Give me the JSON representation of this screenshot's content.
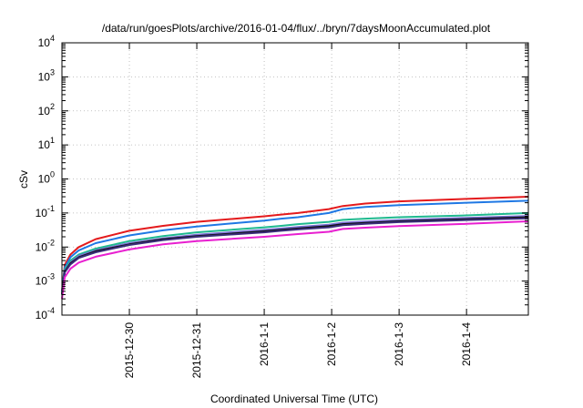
{
  "chart_data": {
    "type": "line",
    "title": "/data/run/goesPlots/archive/2016-01-04/flux/../bryn/7daysMoonAccumulated.plot",
    "xlabel": "Coordinated Universal Time (UTC)",
    "ylabel": "cSv",
    "yscale": "log",
    "ylim_exp": [
      -4,
      4
    ],
    "y_ticks": [
      {
        "base": "10",
        "exp": "-4",
        "value_exp": -4
      },
      {
        "base": "10",
        "exp": "-3",
        "value_exp": -3
      },
      {
        "base": "10",
        "exp": "-2",
        "value_exp": -2
      },
      {
        "base": "10",
        "exp": "-1",
        "value_exp": -1
      },
      {
        "base": "10",
        "exp": "0",
        "value_exp": 0
      },
      {
        "base": "10",
        "exp": "1",
        "value_exp": 1
      },
      {
        "base": "10",
        "exp": "2",
        "value_exp": 2
      },
      {
        "base": "10",
        "exp": "3",
        "value_exp": 3
      },
      {
        "base": "10",
        "exp": "4",
        "value_exp": 4
      }
    ],
    "xlim": [
      "2015-12-29T00:00",
      "2016-01-04T22:00"
    ],
    "x_ticks": [
      {
        "label": "2015-12-30",
        "date": "2015-12-30T00:00"
      },
      {
        "label": "2015-12-31",
        "date": "2015-12-31T00:00"
      },
      {
        "label": "2016-1-1",
        "date": "2016-01-01T00:00"
      },
      {
        "label": "2016-1-2",
        "date": "2016-01-02T00:00"
      },
      {
        "label": "2016-1-3",
        "date": "2016-01-03T00:00"
      },
      {
        "label": "2016-1-4",
        "date": "2016-01-04T00:00"
      }
    ],
    "grid": true,
    "x": [
      "2015-12-29T00:00",
      "2015-12-29T01:00",
      "2015-12-29T03:00",
      "2015-12-29T06:00",
      "2015-12-29T12:00",
      "2015-12-30T00:00",
      "2015-12-30T12:00",
      "2015-12-31T00:00",
      "2016-01-01T00:00",
      "2016-01-01T06:00",
      "2016-01-01T12:00",
      "2016-01-01T23:00",
      "2016-01-02T04:00",
      "2016-01-02T12:00",
      "2016-01-03T00:00",
      "2016-01-04T00:00",
      "2016-01-04T22:00"
    ],
    "series": [
      {
        "color": "#e41a1c",
        "width": 2,
        "values": [
          0.0005,
          0.003,
          0.006,
          0.01,
          0.017,
          0.03,
          0.042,
          0.055,
          0.08,
          0.09,
          0.1,
          0.13,
          0.16,
          0.19,
          0.22,
          0.26,
          0.3
        ]
      },
      {
        "color": "#1f78e4",
        "width": 2,
        "values": [
          0.0005,
          0.0025,
          0.005,
          0.008,
          0.013,
          0.022,
          0.031,
          0.04,
          0.06,
          0.068,
          0.075,
          0.1,
          0.13,
          0.15,
          0.17,
          0.2,
          0.23
        ]
      },
      {
        "color": "#1fb98f",
        "width": 2,
        "values": [
          0.0004,
          0.0022,
          0.004,
          0.006,
          0.009,
          0.015,
          0.021,
          0.027,
          0.038,
          0.042,
          0.047,
          0.055,
          0.063,
          0.068,
          0.075,
          0.085,
          0.1
        ]
      },
      {
        "color": "#7a6fd6",
        "width": 2,
        "values": [
          0.0004,
          0.002,
          0.0035,
          0.0055,
          0.008,
          0.013,
          0.018,
          0.023,
          0.032,
          0.035,
          0.039,
          0.045,
          0.052,
          0.056,
          0.062,
          0.072,
          0.082
        ]
      },
      {
        "color": "#111111",
        "width": 2,
        "values": [
          0.0004,
          0.0019,
          0.0033,
          0.005,
          0.0075,
          0.012,
          0.017,
          0.021,
          0.029,
          0.032,
          0.035,
          0.041,
          0.047,
          0.051,
          0.057,
          0.066,
          0.075
        ]
      },
      {
        "color": "#3a2d7a",
        "width": 2,
        "values": [
          0.0004,
          0.0018,
          0.0031,
          0.0048,
          0.007,
          0.0115,
          0.016,
          0.02,
          0.027,
          0.03,
          0.033,
          0.038,
          0.044,
          0.048,
          0.054,
          0.062,
          0.07
        ]
      },
      {
        "color": "#e81fd0",
        "width": 2,
        "values": [
          0.0003,
          0.0013,
          0.0023,
          0.0035,
          0.0052,
          0.0085,
          0.012,
          0.015,
          0.02,
          0.022,
          0.024,
          0.028,
          0.034,
          0.037,
          0.041,
          0.048,
          0.057
        ]
      }
    ]
  }
}
